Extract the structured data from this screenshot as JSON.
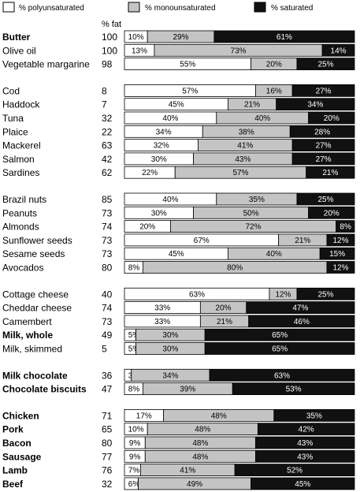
{
  "colors": {
    "polyunsaturated": "#ffffff",
    "monounsaturated": "#c4c4c4",
    "saturated": "#111111"
  },
  "legend": {
    "polyunsaturated": "% polyunsaturated",
    "monounsaturated": "% monounsaturated",
    "saturated": "% saturated"
  },
  "fat_header": "% fat",
  "chart_data": {
    "type": "bar",
    "stacked": true,
    "orientation": "horizontal",
    "series": [
      {
        "name": "% polyunsaturated"
      },
      {
        "name": "% monounsaturated"
      },
      {
        "name": "% saturated"
      }
    ],
    "groups": [
      {
        "items": [
          {
            "label": "Butter",
            "bold": true,
            "fat": 100,
            "values": [
              10,
              29,
              61
            ]
          },
          {
            "label": "Olive oil",
            "bold": false,
            "fat": 100,
            "values": [
              13,
              73,
              14
            ]
          },
          {
            "label": "Vegetable margarine",
            "bold": false,
            "fat": 98,
            "values": [
              55,
              20,
              25
            ]
          }
        ]
      },
      {
        "items": [
          {
            "label": "Cod",
            "bold": false,
            "fat": 8,
            "values": [
              57,
              16,
              27
            ]
          },
          {
            "label": "Haddock",
            "bold": false,
            "fat": 7,
            "values": [
              45,
              21,
              34
            ]
          },
          {
            "label": "Tuna",
            "bold": false,
            "fat": 32,
            "values": [
              40,
              40,
              20
            ]
          },
          {
            "label": "Plaice",
            "bold": false,
            "fat": 22,
            "values": [
              34,
              38,
              28
            ]
          },
          {
            "label": "Mackerel",
            "bold": false,
            "fat": 63,
            "values": [
              32,
              41,
              27
            ]
          },
          {
            "label": "Salmon",
            "bold": false,
            "fat": 42,
            "values": [
              30,
              43,
              27
            ]
          },
          {
            "label": "Sardines",
            "bold": false,
            "fat": 62,
            "values": [
              22,
              57,
              21
            ]
          }
        ]
      },
      {
        "items": [
          {
            "label": "Brazil nuts",
            "bold": false,
            "fat": 85,
            "values": [
              40,
              35,
              25
            ]
          },
          {
            "label": "Peanuts",
            "bold": false,
            "fat": 73,
            "values": [
              30,
              50,
              20
            ]
          },
          {
            "label": "Almonds",
            "bold": false,
            "fat": 74,
            "values": [
              20,
              72,
              8
            ]
          },
          {
            "label": "Sunflower seeds",
            "bold": false,
            "fat": 73,
            "values": [
              67,
              21,
              12
            ]
          },
          {
            "label": "Sesame seeds",
            "bold": false,
            "fat": 73,
            "values": [
              45,
              40,
              15
            ]
          },
          {
            "label": "Avocados",
            "bold": false,
            "fat": 80,
            "values": [
              8,
              80,
              12
            ]
          }
        ]
      },
      {
        "items": [
          {
            "label": "Cottage cheese",
            "bold": false,
            "fat": 40,
            "values": [
              63,
              12,
              25
            ]
          },
          {
            "label": "Cheddar cheese",
            "bold": false,
            "fat": 74,
            "values": [
              33,
              20,
              47
            ]
          },
          {
            "label": "Camembert",
            "bold": false,
            "fat": 73,
            "values": [
              33,
              21,
              46
            ]
          },
          {
            "label": "Milk, whole",
            "bold": true,
            "fat": 49,
            "values": [
              5,
              30,
              65
            ]
          },
          {
            "label": "Milk, skimmed",
            "bold": false,
            "fat": 5,
            "values": [
              5,
              30,
              65
            ]
          }
        ]
      },
      {
        "items": [
          {
            "label": "Milk chocolate",
            "bold": true,
            "fat": 36,
            "values": [
              3,
              34,
              63
            ]
          },
          {
            "label": "Chocolate biscuits",
            "bold": true,
            "fat": 47,
            "values": [
              8,
              39,
              53
            ]
          }
        ]
      },
      {
        "items": [
          {
            "label": "Chicken",
            "bold": true,
            "fat": 71,
            "values": [
              17,
              48,
              35
            ]
          },
          {
            "label": "Pork",
            "bold": true,
            "fat": 65,
            "values": [
              10,
              48,
              42
            ]
          },
          {
            "label": "Bacon",
            "bold": true,
            "fat": 80,
            "values": [
              9,
              48,
              43
            ]
          },
          {
            "label": "Sausage",
            "bold": true,
            "fat": 77,
            "values": [
              9,
              48,
              43
            ]
          },
          {
            "label": "Lamb",
            "bold": true,
            "fat": 76,
            "values": [
              7,
              41,
              52
            ]
          },
          {
            "label": "Beef",
            "bold": true,
            "fat": 32,
            "values": [
              6,
              49,
              45
            ]
          }
        ]
      }
    ]
  }
}
